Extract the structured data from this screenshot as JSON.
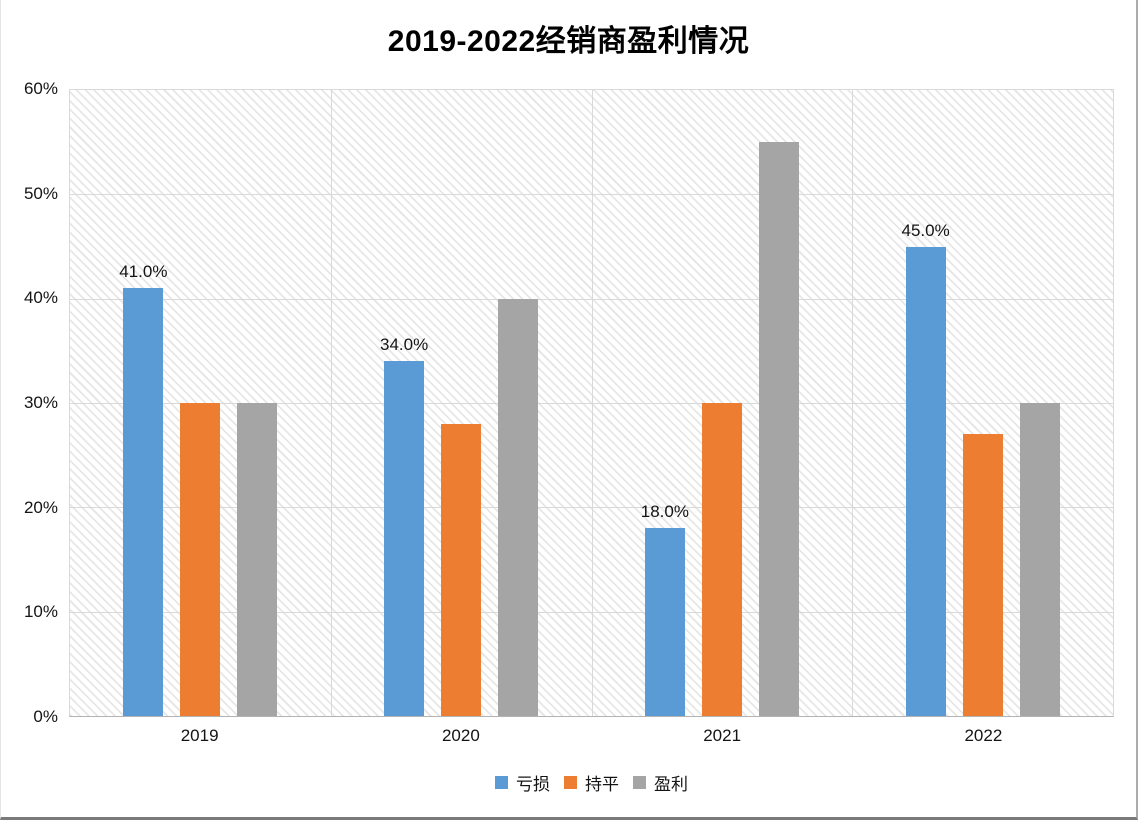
{
  "title": "2019-2022经销商盈利情况",
  "chart_data": {
    "type": "bar",
    "title": "2019-2022经销商盈利情况",
    "categories": [
      "2019",
      "2020",
      "2021",
      "2022"
    ],
    "series": [
      {
        "name": "亏损",
        "color": "#5B9BD5",
        "values": [
          41,
          34,
          18,
          45
        ],
        "data_labels": [
          "41.0%",
          "34.0%",
          "18.0%",
          "45.0%"
        ]
      },
      {
        "name": "持平",
        "color": "#ED7D31",
        "values": [
          30,
          28,
          30,
          27
        ],
        "data_labels": null
      },
      {
        "name": "盈利",
        "color": "#A5A5A5",
        "values": [
          30,
          40,
          55,
          30
        ],
        "data_labels": null
      }
    ],
    "xlabel": "",
    "ylabel": "",
    "ylim": [
      0,
      60
    ],
    "ytick_step": 10,
    "ytick_labels": [
      "0%",
      "10%",
      "20%",
      "30%",
      "40%",
      "50%",
      "60%"
    ],
    "grid": "horizontal and vertical category separators, on",
    "legend_position": "bottom",
    "plot_background": "white with light gray diagonal hatch"
  },
  "colors": {
    "series_loss": "#5B9BD5",
    "series_breakeven": "#ED7D31",
    "series_profit": "#A5A5A5",
    "gridline": "#D9D9D9",
    "axis_line": "#B3B3B3",
    "text": "#141414",
    "hatch_line": "#E7E7E7"
  }
}
